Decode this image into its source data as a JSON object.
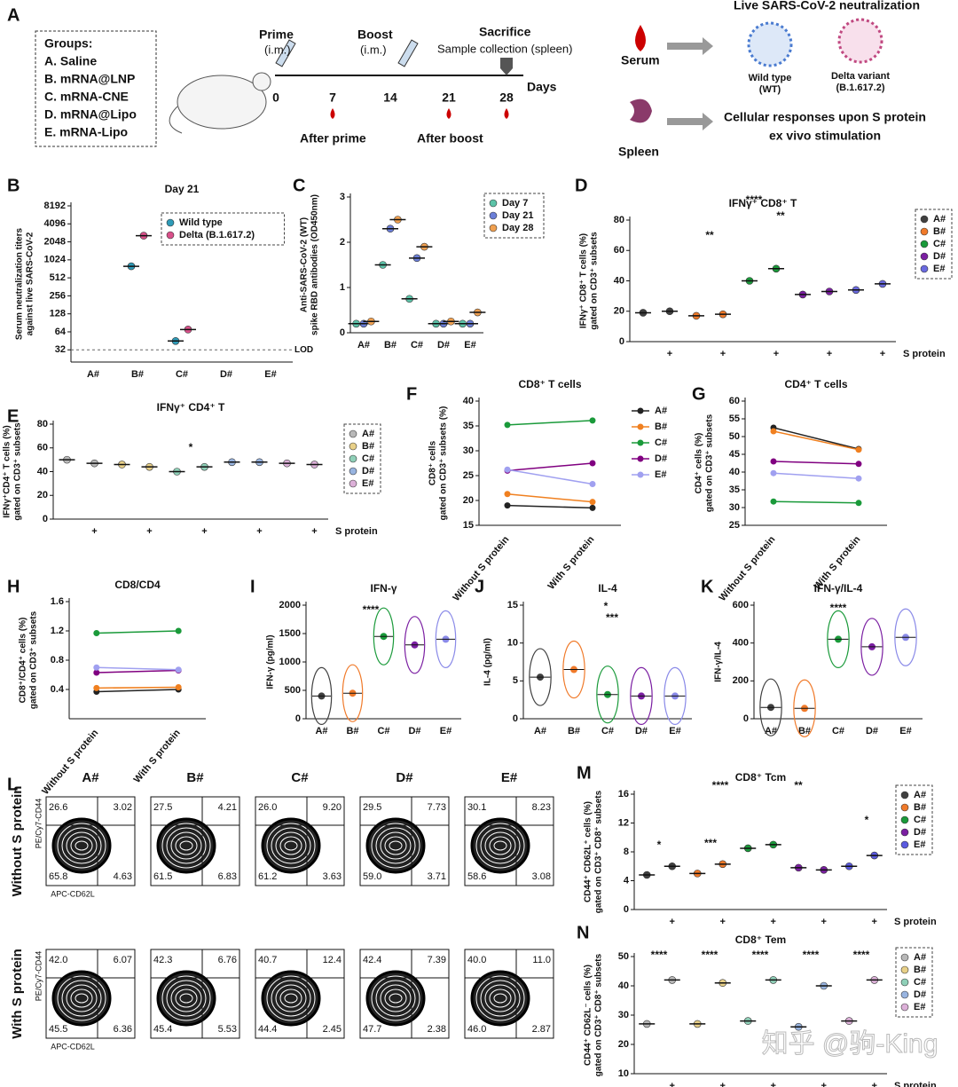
{
  "schematic": {
    "panel_label": "A",
    "groups_title": "Groups:",
    "groups": [
      "A.   Saline",
      "B.   mRNA@LNP",
      "C.   mRNA-CNE",
      "D.   mRNA@Lipo",
      "E.   mRNA-Lipo"
    ],
    "prime": "Prime",
    "prime_route": "(i.m.)",
    "boost": "Boost",
    "boost_route": "(i.m.)",
    "sacrifice": "Sacrifice",
    "sample": "Sample collection (spleen)",
    "days": [
      "0",
      "7",
      "14",
      "21",
      "28"
    ],
    "days_label": "Days",
    "after_prime": "After prime",
    "after_boost": "After boost",
    "serum": "Serum",
    "spleen": "Spleen",
    "neutralization": "Live SARS-CoV-2 neutralization",
    "wt": "Wild type",
    "wt_code": "(WT)",
    "delta": "Delta variant",
    "delta_code": "(B.1.617.2)",
    "cellular": "Cellular responses upon S protein",
    "cellular2": "ex vivo stimulation"
  },
  "flow": {
    "panel_label": "L",
    "columns": [
      "A#",
      "B#",
      "C#",
      "D#",
      "E#"
    ],
    "y_axis": "PE/Cy7-CD44",
    "x_axis": "APC-CD62L",
    "rows": [
      {
        "label": "Without S protein",
        "quadrants": [
          [
            "26.6",
            "3.02",
            "65.8",
            "4.63"
          ],
          [
            "27.5",
            "4.21",
            "61.5",
            "6.83"
          ],
          [
            "26.0",
            "9.20",
            "61.2",
            "3.63"
          ],
          [
            "29.5",
            "7.73",
            "59.0",
            "3.71"
          ],
          [
            "30.1",
            "8.23",
            "58.6",
            "3.08"
          ]
        ]
      },
      {
        "label": "With S protein",
        "quadrants": [
          [
            "42.0",
            "6.07",
            "45.5",
            "6.36"
          ],
          [
            "42.3",
            "6.76",
            "45.4",
            "5.53"
          ],
          [
            "40.7",
            "12.4",
            "44.4",
            "2.45"
          ],
          [
            "42.4",
            "7.39",
            "47.7",
            "2.38"
          ],
          [
            "40.0",
            "11.0",
            "46.0",
            "2.87"
          ]
        ]
      }
    ]
  },
  "watermark": "知乎 @驹-King",
  "chart_data": [
    {
      "type": "dot",
      "panel_label": "B",
      "title": "Day 21",
      "ylabel": [
        "Serum neutralization titers",
        "against live SARS-CoV-2"
      ],
      "log": true,
      "ylim": [
        20,
        8192
      ],
      "yticks": [
        32,
        64,
        128,
        256,
        512,
        1024,
        2048,
        4096,
        8192
      ],
      "lod": 32,
      "lod_label": "LOD",
      "legend": "top-right",
      "categories": [
        "A#",
        "B#",
        "C#",
        "D#",
        "E#"
      ],
      "series": [
        {
          "name": "Wild type",
          "color": "#2e9bb8",
          "values": [
            null,
            800,
            45,
            null,
            null
          ]
        },
        {
          "name": "Delta (B.1.617.2)",
          "color": "#d9508a",
          "values": [
            null,
            2600,
            70,
            null,
            null
          ]
        }
      ]
    },
    {
      "type": "dot",
      "panel_label": "C",
      "ylabel": [
        "Anti-SARS-CoV-2 (WT)",
        "spike RBD antibodies (OD450nm)"
      ],
      "ylim": [
        0,
        3
      ],
      "yticks": [
        0,
        1,
        2,
        3
      ],
      "legend": "top-right",
      "categories": [
        "A#",
        "B#",
        "C#",
        "D#",
        "E#"
      ],
      "series": [
        {
          "name": "Day 7",
          "color": "#5cc3a8",
          "values": [
            0.2,
            1.5,
            0.75,
            0.2,
            0.2
          ]
        },
        {
          "name": "Day 21",
          "color": "#6b7fd8",
          "values": [
            0.2,
            2.3,
            1.65,
            0.2,
            0.2
          ]
        },
        {
          "name": "Day 28",
          "color": "#f0a050",
          "values": [
            0.25,
            2.5,
            1.9,
            0.25,
            0.45
          ]
        }
      ]
    },
    {
      "type": "paired",
      "panel_label": "D",
      "title": "IFNγ⁺ CD8⁺ T",
      "ylabel": [
        "IFNγ⁺ CD8⁺ T cells (%)",
        "gated on CD3⁺ subsets"
      ],
      "ylim": [
        0,
        80
      ],
      "yticks": [
        0,
        20,
        40,
        60,
        80
      ],
      "xlabel": "S protein",
      "legend": "right",
      "annotations": [
        "****",
        "**",
        "**"
      ],
      "categories": [
        null,
        "+",
        null,
        "+",
        null,
        "+",
        null,
        "+",
        null,
        "+"
      ],
      "series": [
        {
          "name": "A#",
          "color": "#404040",
          "values": [
            19,
            20,
            null,
            null,
            null,
            null,
            null,
            null,
            null,
            null
          ]
        },
        {
          "name": "B#",
          "color": "#f07a2a",
          "values": [
            null,
            null,
            17,
            18,
            null,
            null,
            null,
            null,
            null,
            null
          ]
        },
        {
          "name": "C#",
          "color": "#1a9a3a",
          "values": [
            null,
            null,
            null,
            null,
            40,
            48,
            null,
            null,
            null,
            null
          ]
        },
        {
          "name": "D#",
          "color": "#7b1fa2",
          "values": [
            null,
            null,
            null,
            null,
            null,
            null,
            31,
            33,
            null,
            null
          ]
        },
        {
          "name": "E#",
          "color": "#6a6ae0",
          "values": [
            null,
            null,
            null,
            null,
            null,
            null,
            null,
            null,
            34,
            38
          ]
        }
      ]
    },
    {
      "type": "paired",
      "panel_label": "E",
      "title": "IFNγ⁺ CD4⁺ T",
      "ylabel": [
        "IFNγ⁺CD4⁺ T cells (%)",
        "gated on CD3⁺ subsets"
      ],
      "ylim": [
        0,
        80
      ],
      "yticks": [
        0,
        20,
        40,
        60,
        80
      ],
      "xlabel": "S protein",
      "legend": "right",
      "annotations": [
        "*"
      ],
      "categories": [
        null,
        "+",
        null,
        "+",
        null,
        "+",
        null,
        "+",
        null,
        "+"
      ],
      "series": [
        {
          "name": "A#",
          "color": "#b8b8b8",
          "values": [
            50,
            47,
            null,
            null,
            null,
            null,
            null,
            null,
            null,
            null
          ]
        },
        {
          "name": "B#",
          "color": "#e8d088",
          "values": [
            null,
            null,
            46,
            44,
            null,
            null,
            null,
            null,
            null,
            null
          ]
        },
        {
          "name": "C#",
          "color": "#8fd0b8",
          "values": [
            null,
            null,
            null,
            null,
            40,
            44,
            null,
            null,
            null,
            null
          ]
        },
        {
          "name": "D#",
          "color": "#98b4e0",
          "values": [
            null,
            null,
            null,
            null,
            null,
            null,
            48,
            48,
            null,
            null
          ]
        },
        {
          "name": "E#",
          "color": "#dcb0d8",
          "values": [
            null,
            null,
            null,
            null,
            null,
            null,
            null,
            null,
            47,
            46
          ]
        }
      ]
    },
    {
      "type": "line",
      "panel_label": "F",
      "title": "CD8⁺ T cells",
      "ylabel": [
        "CD8⁺ cells",
        "gated on CD3⁺ subsets (%)"
      ],
      "ylim": [
        15,
        40
      ],
      "yticks": [
        15,
        20,
        25,
        30,
        35,
        40
      ],
      "legend": "right",
      "categories": [
        "Without S protein",
        "With S protein"
      ],
      "series": [
        {
          "name": "A#",
          "color": "#222222",
          "values": [
            19,
            18.5
          ]
        },
        {
          "name": "B#",
          "color": "#f08020",
          "values": [
            21.3,
            19.7
          ]
        },
        {
          "name": "C#",
          "color": "#1a9a3a",
          "values": [
            35.2,
            36.1
          ]
        },
        {
          "name": "D#",
          "color": "#800080",
          "values": [
            26,
            27.5
          ]
        },
        {
          "name": "E#",
          "color": "#a0a0f0",
          "values": [
            26.2,
            23.3
          ]
        }
      ]
    },
    {
      "type": "line",
      "panel_label": "G",
      "title": "CD4⁺ T cells",
      "ylabel": [
        "CD4⁺ cells (%)",
        "gated on CD3⁺ subsets"
      ],
      "ylim": [
        25,
        60
      ],
      "yticks": [
        25,
        30,
        35,
        40,
        45,
        50,
        55,
        60
      ],
      "categories": [
        "Without S protein",
        "With S protein"
      ],
      "series": [
        {
          "color": "#222222",
          "values": [
            52.5,
            46.5
          ]
        },
        {
          "color": "#f08020",
          "values": [
            51.5,
            46.3
          ]
        },
        {
          "color": "#1a9a3a",
          "values": [
            31.7,
            31.3
          ]
        },
        {
          "color": "#800080",
          "values": [
            43,
            42.3
          ]
        },
        {
          "color": "#a0a0f0",
          "values": [
            39.7,
            38.2
          ]
        }
      ]
    },
    {
      "type": "line",
      "panel_label": "H",
      "title": "CD8/CD4",
      "ylabel": [
        "CD8⁺/CD4⁺ cells (%)",
        "gated on CD3⁺ subsets"
      ],
      "ylim": [
        0,
        1.6
      ],
      "yticks": [
        0.4,
        0.8,
        1.2,
        1.6
      ],
      "categories": [
        "Without S protein",
        "With S protein"
      ],
      "series": [
        {
          "color": "#222222",
          "values": [
            0.37,
            0.4
          ]
        },
        {
          "color": "#f08020",
          "values": [
            0.42,
            0.43
          ]
        },
        {
          "color": "#1a9a3a",
          "values": [
            1.17,
            1.2
          ]
        },
        {
          "color": "#800080",
          "values": [
            0.63,
            0.66
          ]
        },
        {
          "color": "#a0a0f0",
          "values": [
            0.7,
            0.67
          ]
        }
      ]
    },
    {
      "type": "violin",
      "panel_label": "I",
      "title": "IFN-γ",
      "ylabel": [
        "IFN-γ (pg/ml)"
      ],
      "ylim": [
        0,
        2000
      ],
      "yticks": [
        0,
        500,
        1000,
        1500,
        2000
      ],
      "annotations": [
        "****"
      ],
      "categories": [
        "A#",
        "B#",
        "C#",
        "D#",
        "E#"
      ],
      "values": [
        400,
        450,
        1450,
        1300,
        1400
      ],
      "colors": [
        "#404040",
        "#f07a2a",
        "#1a9a3a",
        "#7b1fa2",
        "#8a8ae8"
      ]
    },
    {
      "type": "violin",
      "panel_label": "J",
      "title": "IL-4",
      "ylabel": [
        "IL-4 (pg/ml)"
      ],
      "ylim": [
        0,
        15
      ],
      "yticks": [
        0,
        5,
        10,
        15
      ],
      "annotations": [
        "*",
        "***"
      ],
      "categories": [
        "A#",
        "B#",
        "C#",
        "D#",
        "E#"
      ],
      "values": [
        5.5,
        6.5,
        3.2,
        3,
        3
      ],
      "colors": [
        "#404040",
        "#f07a2a",
        "#1a9a3a",
        "#7b1fa2",
        "#8a8ae8"
      ]
    },
    {
      "type": "violin",
      "panel_label": "K",
      "title": "IFN-γ/IL-4",
      "ylabel": [
        "IFN-γ/IL-4"
      ],
      "ylim": [
        0,
        600
      ],
      "yticks": [
        0,
        200,
        400,
        600
      ],
      "annotations": [
        "****"
      ],
      "categories": [
        "A#",
        "B#",
        "C#",
        "D#",
        "E#"
      ],
      "values": [
        60,
        55,
        420,
        380,
        430
      ],
      "colors": [
        "#404040",
        "#f07a2a",
        "#1a9a3a",
        "#7b1fa2",
        "#8a8ae8"
      ]
    },
    {
      "type": "paired",
      "panel_label": "M",
      "title": "CD8⁺ Tcm",
      "ylabel": [
        "CD44⁺ CD62L⁺ cells (%)",
        "gated on CD3⁺ CD8⁺ subsets"
      ],
      "ylim": [
        0,
        16
      ],
      "yticks": [
        0,
        4,
        8,
        12,
        16
      ],
      "xlabel": "S protein",
      "legend": "right",
      "annotations": [
        "****",
        "**",
        "*",
        "***",
        "*"
      ],
      "categories": [
        null,
        "+",
        null,
        "+",
        null,
        "+",
        null,
        "+",
        null,
        "+"
      ],
      "series": [
        {
          "name": "A#",
          "color": "#404040",
          "values": [
            4.8,
            6,
            null,
            null,
            null,
            null,
            null,
            null,
            null,
            null
          ]
        },
        {
          "name": "B#",
          "color": "#f07a2a",
          "values": [
            null,
            null,
            5,
            6.3,
            null,
            null,
            null,
            null,
            null,
            null
          ]
        },
        {
          "name": "C#",
          "color": "#1a9a3a",
          "values": [
            null,
            null,
            null,
            null,
            8.5,
            9,
            null,
            null,
            null,
            null
          ]
        },
        {
          "name": "D#",
          "color": "#7b1fa2",
          "values": [
            null,
            null,
            null,
            null,
            null,
            null,
            5.8,
            5.5,
            null,
            null
          ]
        },
        {
          "name": "E#",
          "color": "#5a5ae0",
          "values": [
            null,
            null,
            null,
            null,
            null,
            null,
            null,
            null,
            6,
            7.5
          ]
        }
      ]
    },
    {
      "type": "paired",
      "panel_label": "N",
      "title": "CD8⁺ Tem",
      "ylabel": [
        "CD44⁺ CD62L⁻ cells (%)",
        "gated on CD3⁺ CD8⁺ subsets"
      ],
      "ylim": [
        10,
        50
      ],
      "yticks": [
        10,
        20,
        30,
        40,
        50
      ],
      "xlabel": "S protein",
      "legend": "right",
      "annotations": [
        "****",
        "****",
        "****",
        "****",
        "****"
      ],
      "categories": [
        null,
        "+",
        null,
        "+",
        null,
        "+",
        null,
        "+",
        null,
        "+"
      ],
      "series": [
        {
          "name": "A#",
          "color": "#b8b8b8",
          "values": [
            27,
            42,
            null,
            null,
            null,
            null,
            null,
            null,
            null,
            null
          ]
        },
        {
          "name": "B#",
          "color": "#e8d088",
          "values": [
            null,
            null,
            27,
            41,
            null,
            null,
            null,
            null,
            null,
            null
          ]
        },
        {
          "name": "C#",
          "color": "#8fd0b8",
          "values": [
            null,
            null,
            null,
            null,
            28,
            42,
            null,
            null,
            null,
            null
          ]
        },
        {
          "name": "D#",
          "color": "#98b4e0",
          "values": [
            null,
            null,
            null,
            null,
            null,
            null,
            26,
            40,
            null,
            null
          ]
        },
        {
          "name": "E#",
          "color": "#dcb0d8",
          "values": [
            null,
            null,
            null,
            null,
            null,
            null,
            null,
            null,
            28,
            42
          ]
        }
      ]
    }
  ]
}
